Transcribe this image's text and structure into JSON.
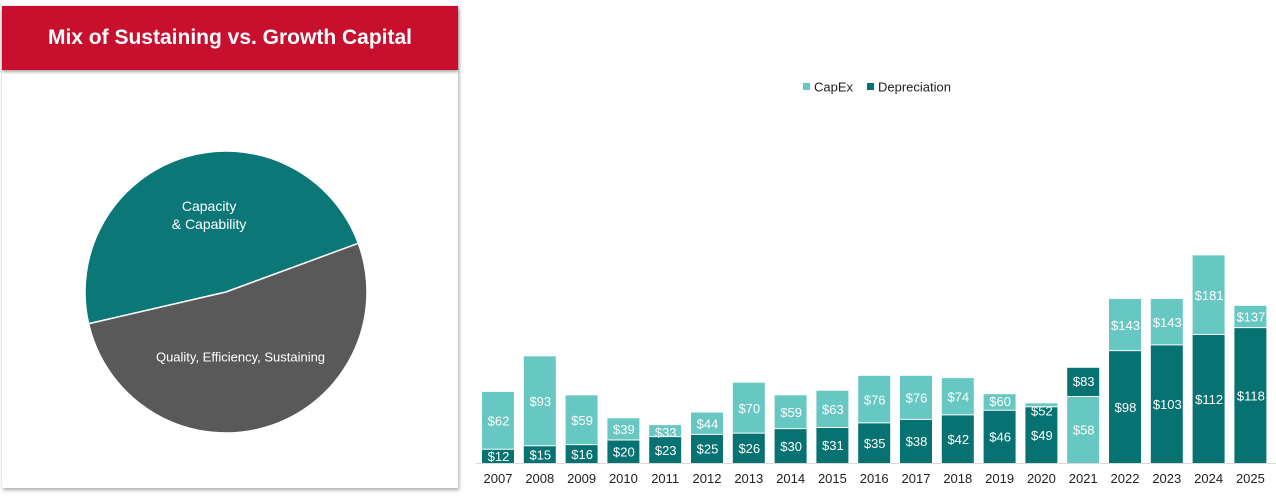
{
  "title": "Mix of Sustaining vs. Growth Capital",
  "colors": {
    "banner": "#c8102e",
    "capex": "#66c7c3",
    "depreciation": "#077272",
    "teal_slice": "#0b7777",
    "gray_slice": "#595959"
  },
  "chart_data": [
    {
      "type": "pie",
      "labels": [
        "Capacity & Capability",
        "Quality, Efficiency, Sustaining"
      ],
      "label_lines": [
        [
          "Capacity",
          "& Capability"
        ],
        [
          "Quality, Efficiency, Sustaining"
        ]
      ],
      "values": [
        48,
        52
      ]
    },
    {
      "type": "bar",
      "stacked": true,
      "categories": [
        "2007",
        "2008",
        "2009",
        "2010",
        "2011",
        "2012",
        "2013",
        "2014",
        "2015",
        "2016",
        "2017",
        "2018",
        "2019",
        "2020",
        "2021",
        "2022",
        "2023",
        "2024",
        "2025"
      ],
      "series": [
        {
          "name": "CapEx",
          "values": [
            62,
            93,
            59,
            39,
            33,
            44,
            70,
            59,
            63,
            76,
            76,
            74,
            60,
            52,
            58,
            143,
            143,
            181,
            137
          ]
        },
        {
          "name": "Depreciation",
          "values": [
            12,
            15,
            16,
            20,
            23,
            25,
            26,
            30,
            31,
            35,
            38,
            42,
            46,
            49,
            83,
            98,
            103,
            112,
            118
          ]
        }
      ],
      "value_labels": {
        "CapEx": [
          "$62",
          "$93",
          "$59",
          "$39",
          "$33",
          "$44",
          "$70",
          "$59",
          "$63",
          "$76",
          "$76",
          "$74",
          "$60",
          "$52",
          "$58",
          "$143",
          "$143",
          "$181",
          "$137"
        ],
        "Depreciation": [
          "$12",
          "$15",
          "$16",
          "$20",
          "$23",
          "$25",
          "$26",
          "$30",
          "$31",
          "$35",
          "$38",
          "$42",
          "$46",
          "$49",
          "$83",
          "$98",
          "$103",
          "$112",
          "$118"
        ]
      },
      "legend_position": "top-center",
      "grid": false
    }
  ]
}
